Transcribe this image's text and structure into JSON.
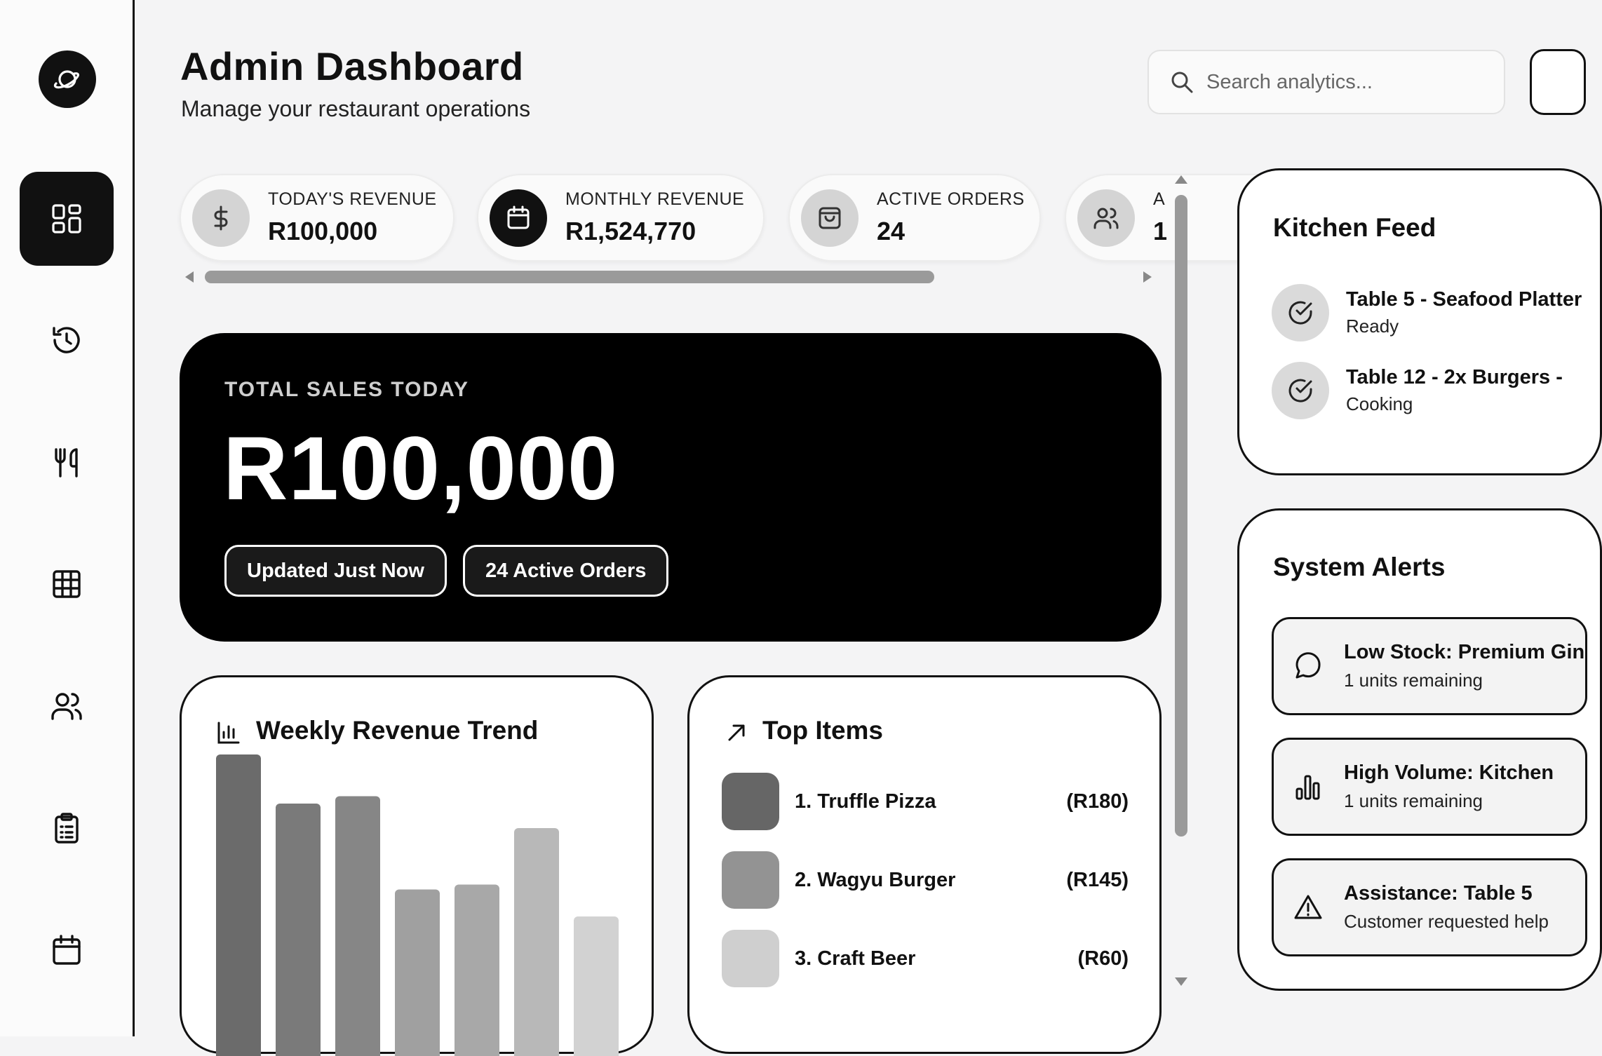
{
  "header": {
    "title": "Admin Dashboard",
    "subtitle": "Manage your restaurant operations",
    "search_placeholder": "Search analytics..."
  },
  "sidebar": {
    "items": [
      {
        "icon": "dashboard-grid-icon",
        "active": true
      },
      {
        "icon": "history-icon",
        "active": false
      },
      {
        "icon": "utensils-icon",
        "active": false
      },
      {
        "icon": "tables-grid-icon",
        "active": false
      },
      {
        "icon": "users-icon",
        "active": false
      },
      {
        "icon": "clipboard-icon",
        "active": false
      },
      {
        "icon": "calendar-icon",
        "active": false
      }
    ]
  },
  "stats": [
    {
      "label": "TODAY'S REVENUE",
      "value": "R100,000",
      "icon": "dollar-icon"
    },
    {
      "label": "MONTHLY REVENUE",
      "value": "R1,524,770",
      "icon": "calendar-icon"
    },
    {
      "label": "ACTIVE ORDERS",
      "value": "24",
      "icon": "shopping-bag-icon"
    },
    {
      "label": "A",
      "value": "1",
      "icon": "users-icon"
    }
  ],
  "hero": {
    "label": "TOTAL SALES TODAY",
    "value": "R100,000",
    "pill_updated": "Updated Just Now",
    "pill_orders": "24 Active Orders"
  },
  "weekly_revenue": {
    "title": "Weekly Revenue Trend"
  },
  "chart_data": {
    "type": "bar",
    "title": "Weekly Revenue Trend",
    "values": [
      100,
      80,
      83,
      45,
      47,
      70,
      34
    ],
    "colors": [
      "#6b6b6b",
      "#7a7a7a",
      "#868686",
      "#a0a0a0",
      "#a8a8a8",
      "#b8b8b8",
      "#d2d2d2"
    ],
    "ylim": [
      0,
      100
    ],
    "grid": false
  },
  "top_items": {
    "title": "Top Items",
    "items": [
      {
        "name": "1. Truffle Pizza",
        "price": "(R180)",
        "color": "#666666"
      },
      {
        "name": "2. Wagyu Burger",
        "price": "(R145)",
        "color": "#939393"
      },
      {
        "name": "3. Craft Beer",
        "price": "(R60)",
        "color": "#cfcfcf"
      }
    ]
  },
  "kitchen_feed": {
    "title": "Kitchen Feed",
    "items": [
      {
        "title": "Table 5 - Seafood Platter",
        "status": "Ready"
      },
      {
        "title": "Table 12 - 2x Burgers -",
        "status": "Cooking"
      }
    ]
  },
  "system_alerts": {
    "title": "System Alerts",
    "items": [
      {
        "title": "Low Stock: Premium Gin",
        "sub": "1 units remaining",
        "icon": "message-circle-icon"
      },
      {
        "title": "High Volume: Kitchen",
        "sub": "1 units remaining",
        "icon": "bar-chart-icon"
      },
      {
        "title": "Assistance: Table 5",
        "sub": "Customer requested help",
        "icon": "warning-triangle-icon"
      }
    ]
  }
}
